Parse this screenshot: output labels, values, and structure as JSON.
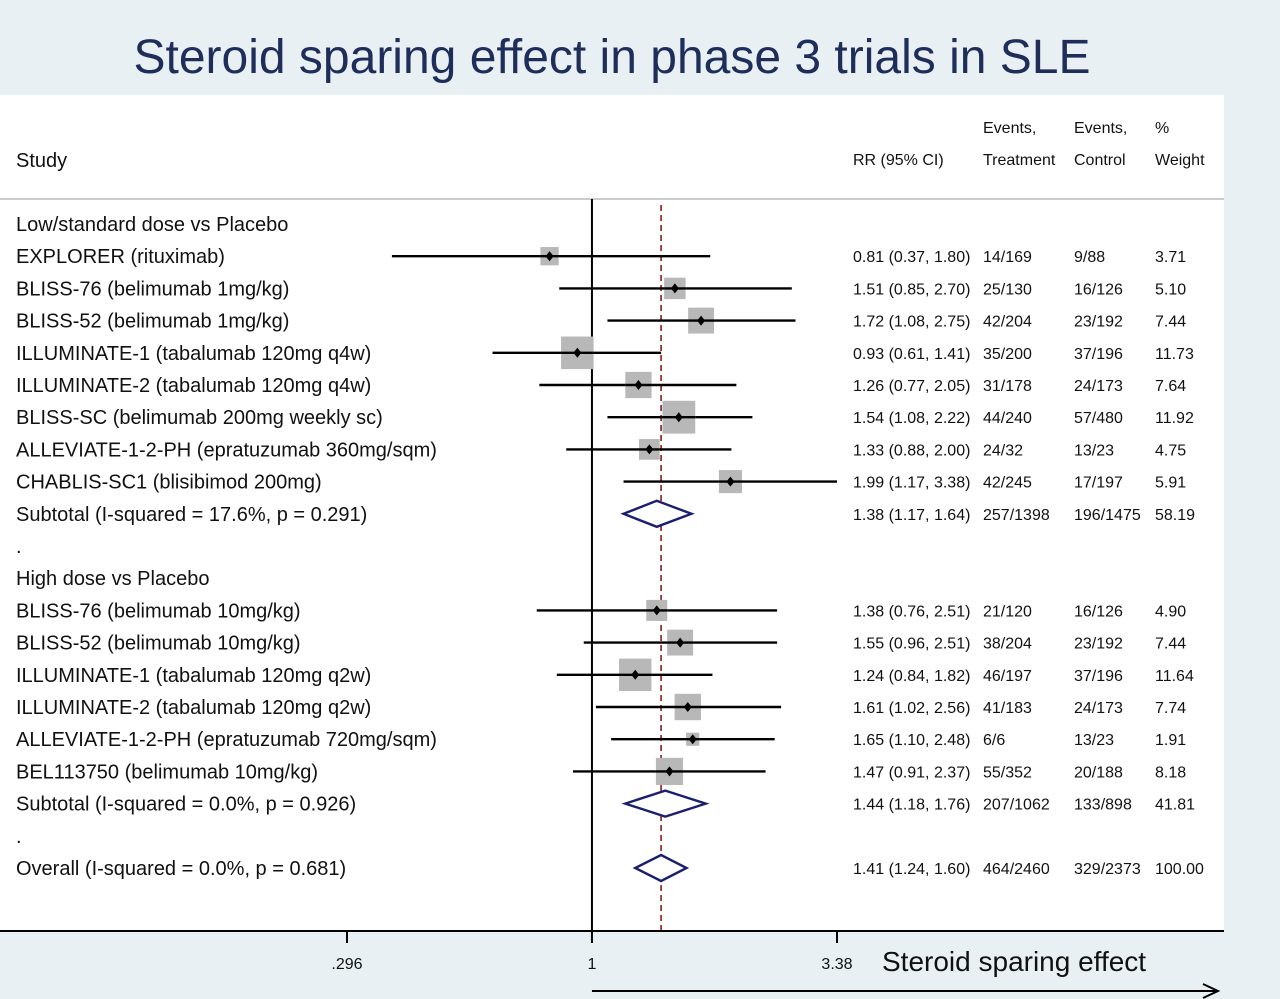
{
  "page": {
    "title": "Steroid sparing effect in phase 3 trials in SLE"
  },
  "chart_data": {
    "type": "forest",
    "scale": "log",
    "xlim": [
      0.296,
      3.38
    ],
    "reference_line": 1,
    "overall_dashed_line": 1.41,
    "xticks": [
      {
        "value": 0.296,
        "label": ".296"
      },
      {
        "value": 1,
        "label": "1"
      },
      {
        "value": 3.38,
        "label": "3.38"
      }
    ],
    "x_arrow_label": "Steroid sparing effect",
    "columns": {
      "study": "Study",
      "rr": "RR (95% CI)",
      "events_treatment": [
        "Events,",
        "Treatment"
      ],
      "events_control": [
        "Events,",
        "Control"
      ],
      "weight": [
        "%",
        "Weight"
      ]
    },
    "rows": [
      {
        "kind": "group",
        "label": "Low/standard dose vs Placebo"
      },
      {
        "kind": "study",
        "label": "EXPLORER (rituximab)",
        "rr": 0.81,
        "lo": 0.37,
        "hi": 1.8,
        "rr_text": "0.81 (0.37, 1.80)",
        "ev_t": "14/169",
        "ev_c": "9/88",
        "weight": "3.71",
        "w": 3.71
      },
      {
        "kind": "study",
        "label": "BLISS-76 (belimumab 1mg/kg)",
        "rr": 1.51,
        "lo": 0.85,
        "hi": 2.7,
        "rr_text": "1.51 (0.85, 2.70)",
        "ev_t": "25/130",
        "ev_c": "16/126",
        "weight": "5.10",
        "w": 5.1
      },
      {
        "kind": "study",
        "label": "BLISS-52 (belimumab 1mg/kg)",
        "rr": 1.72,
        "lo": 1.08,
        "hi": 2.75,
        "rr_text": "1.72 (1.08, 2.75)",
        "ev_t": "42/204",
        "ev_c": "23/192",
        "weight": "7.44",
        "w": 7.44
      },
      {
        "kind": "study",
        "label": "ILLUMINATE-1 (tabalumab 120mg q4w)",
        "rr": 0.93,
        "lo": 0.61,
        "hi": 1.41,
        "rr_text": "0.93 (0.61, 1.41)",
        "ev_t": "35/200",
        "ev_c": "37/196",
        "weight": "11.73",
        "w": 11.73
      },
      {
        "kind": "study",
        "label": "ILLUMINATE-2 (tabalumab 120mg q4w)",
        "rr": 1.26,
        "lo": 0.77,
        "hi": 2.05,
        "rr_text": "1.26 (0.77, 2.05)",
        "ev_t": "31/178",
        "ev_c": "24/173",
        "weight": "7.64",
        "w": 7.64
      },
      {
        "kind": "study",
        "label": "BLISS-SC (belimumab 200mg weekly sc)",
        "rr": 1.54,
        "lo": 1.08,
        "hi": 2.22,
        "rr_text": "1.54 (1.08, 2.22)",
        "ev_t": "44/240",
        "ev_c": "57/480",
        "weight": "11.92",
        "w": 11.92
      },
      {
        "kind": "study",
        "label": "ALLEVIATE-1-2-PH (epratuzumab 360mg/sqm)",
        "rr": 1.33,
        "lo": 0.88,
        "hi": 2.0,
        "rr_text": "1.33 (0.88, 2.00)",
        "ev_t": "24/32",
        "ev_c": "13/23",
        "weight": "4.75",
        "w": 4.75
      },
      {
        "kind": "study",
        "label": "CHABLIS-SC1 (blisibimod 200mg)",
        "rr": 1.99,
        "lo": 1.17,
        "hi": 3.38,
        "rr_text": "1.99 (1.17, 3.38)",
        "ev_t": "42/245",
        "ev_c": "17/197",
        "weight": "5.91",
        "w": 5.91
      },
      {
        "kind": "subtotal",
        "label": "Subtotal  (I-squared = 17.6%, p = 0.291)",
        "rr": 1.38,
        "lo": 1.17,
        "hi": 1.64,
        "rr_text": "1.38 (1.17, 1.64)",
        "ev_t": "257/1398",
        "ev_c": "196/1475",
        "weight": "58.19"
      },
      {
        "kind": "spacer",
        "label": "."
      },
      {
        "kind": "group",
        "label": "High dose vs Placebo"
      },
      {
        "kind": "study",
        "label": "BLISS-76 (belimumab 10mg/kg)",
        "rr": 1.38,
        "lo": 0.76,
        "hi": 2.51,
        "rr_text": "1.38 (0.76, 2.51)",
        "ev_t": "21/120",
        "ev_c": "16/126",
        "weight": "4.90",
        "w": 4.9
      },
      {
        "kind": "study",
        "label": "BLISS-52 (belimumab 10mg/kg)",
        "rr": 1.55,
        "lo": 0.96,
        "hi": 2.51,
        "rr_text": "1.55 (0.96, 2.51)",
        "ev_t": "38/204",
        "ev_c": "23/192",
        "weight": "7.44",
        "w": 7.44
      },
      {
        "kind": "study",
        "label": "ILLUMINATE-1 (tabalumab 120mg q2w)",
        "rr": 1.24,
        "lo": 0.84,
        "hi": 1.82,
        "rr_text": "1.24 (0.84, 1.82)",
        "ev_t": "46/197",
        "ev_c": "37/196",
        "weight": "11.64",
        "w": 11.64
      },
      {
        "kind": "study",
        "label": "ILLUMINATE-2 (tabalumab 120mg q2w)",
        "rr": 1.61,
        "lo": 1.02,
        "hi": 2.56,
        "rr_text": "1.61 (1.02, 2.56)",
        "ev_t": "41/183",
        "ev_c": "24/173",
        "weight": "7.74",
        "w": 7.74
      },
      {
        "kind": "study",
        "label": "ALLEVIATE-1-2-PH (epratuzumab 720mg/sqm)",
        "rr": 1.65,
        "lo": 1.1,
        "hi": 2.48,
        "rr_text": "1.65 (1.10, 2.48)",
        "ev_t": "6/6",
        "ev_c": "13/23",
        "weight": "1.91",
        "w": 1.91
      },
      {
        "kind": "study",
        "label": "BEL113750 (belimumab 10mg/kg)",
        "rr": 1.47,
        "lo": 0.91,
        "hi": 2.37,
        "rr_text": "1.47 (0.91, 2.37)",
        "ev_t": "55/352",
        "ev_c": "20/188",
        "weight": "8.18",
        "w": 8.18
      },
      {
        "kind": "subtotal",
        "label": "Subtotal  (I-squared = 0.0%, p = 0.926)",
        "rr": 1.44,
        "lo": 1.18,
        "hi": 1.76,
        "rr_text": "1.44 (1.18, 1.76)",
        "ev_t": "207/1062",
        "ev_c": "133/898",
        "weight": "41.81"
      },
      {
        "kind": "spacer",
        "label": "."
      },
      {
        "kind": "overall",
        "label": "Overall  (I-squared = 0.0%, p = 0.681)",
        "rr": 1.41,
        "lo": 1.24,
        "hi": 1.6,
        "rr_text": "1.41 (1.24, 1.60)",
        "ev_t": "464/2460",
        "ev_c": "329/2373",
        "weight": "100.00"
      }
    ],
    "colors": {
      "diamond": "#1a1f6e",
      "square": "#b8b8b8",
      "dashed_line": "#8b1a1a",
      "title": "#1f2d5a",
      "background": "#e9f0f4"
    }
  }
}
